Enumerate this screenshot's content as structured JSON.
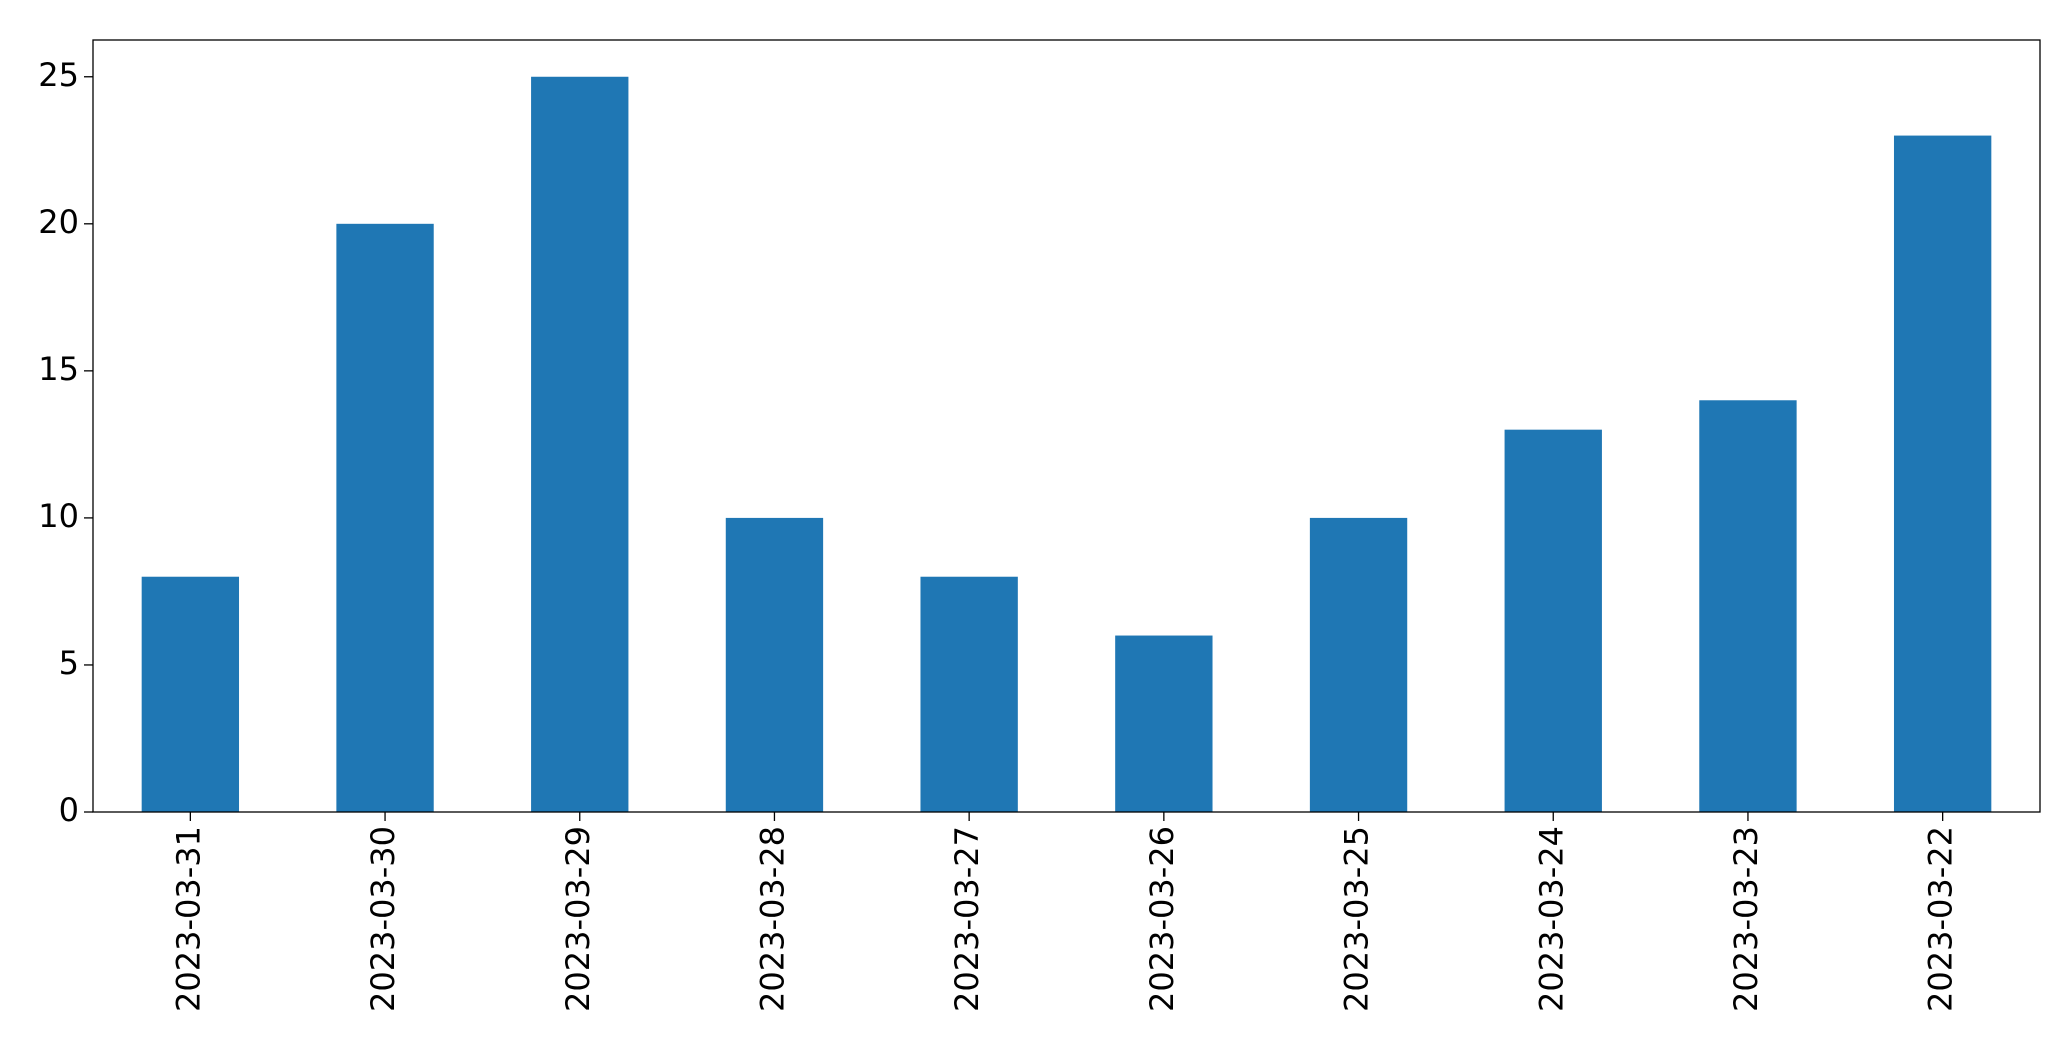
{
  "chart_data": {
    "type": "bar",
    "categories": [
      "2023-03-31",
      "2023-03-30",
      "2023-03-29",
      "2023-03-28",
      "2023-03-27",
      "2023-03-26",
      "2023-03-25",
      "2023-03-24",
      "2023-03-23",
      "2023-03-22"
    ],
    "values": [
      8,
      20,
      25,
      10,
      8,
      6,
      10,
      13,
      14,
      23
    ],
    "color": "#1f77b4",
    "ylim": [
      0,
      26.25
    ],
    "yticks": [
      0,
      5,
      10,
      15,
      20,
      25
    ],
    "grid": false
  }
}
